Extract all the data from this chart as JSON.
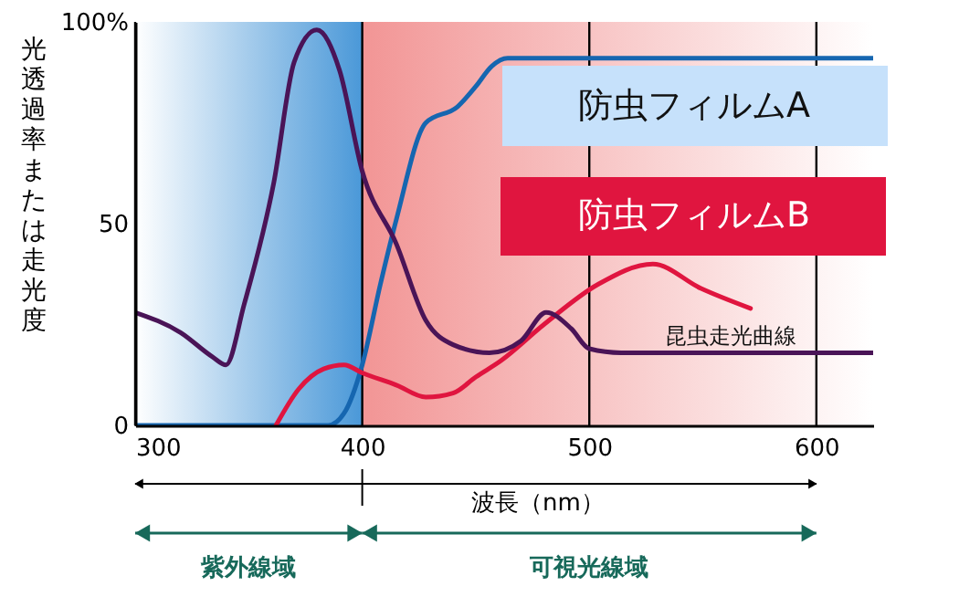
{
  "chart_data": {
    "type": "line",
    "ylabel": "光透過率または走光度",
    "xlabel": "波長（nm）",
    "xlim": [
      300,
      625
    ],
    "xticks": [
      300,
      400,
      500,
      600
    ],
    "ylim": [
      0,
      100
    ],
    "yticks": [
      0,
      50,
      {
        "value": 100,
        "label": "100%"
      }
    ],
    "grid": "x",
    "series": [
      {
        "name": "防虫フィルムA",
        "color": "#1666b0",
        "x": [
          300,
          385,
          392,
          400,
          408,
          415,
          428,
          442,
          450,
          457,
          464,
          625
        ],
        "values": [
          0,
          0,
          3,
          15,
          35,
          51,
          75,
          79,
          84,
          89,
          91,
          91
        ]
      },
      {
        "name": "防虫フィルムB",
        "color": "#e0153f",
        "x": [
          362,
          372,
          383,
          392,
          400,
          415,
          428,
          440,
          450,
          461,
          480,
          504,
          528,
          549,
          571
        ],
        "values": [
          0,
          9,
          14,
          15,
          13,
          10,
          7,
          8,
          12,
          16,
          25,
          35,
          40,
          34,
          29
        ]
      },
      {
        "name": "昆虫走光曲線",
        "color": "#4a1457",
        "x": [
          300,
          320,
          334,
          340,
          348,
          361,
          370,
          380,
          390,
          400,
          415,
          428,
          440,
          456,
          470,
          481,
          492,
          500,
          514,
          625
        ],
        "values": [
          28,
          23,
          17,
          15,
          30,
          60,
          90,
          98,
          88,
          63,
          45,
          26,
          20,
          18,
          21,
          28,
          24,
          19,
          18,
          18
        ]
      }
    ],
    "annotations": [
      "紫外線域",
      "可視光線域"
    ],
    "bands": [
      {
        "axis": "x",
        "from": 300,
        "to": 400,
        "color": "#4a98d8"
      },
      {
        "axis": "x",
        "from": 400,
        "to": 625,
        "color": "#f29595"
      }
    ]
  }
}
